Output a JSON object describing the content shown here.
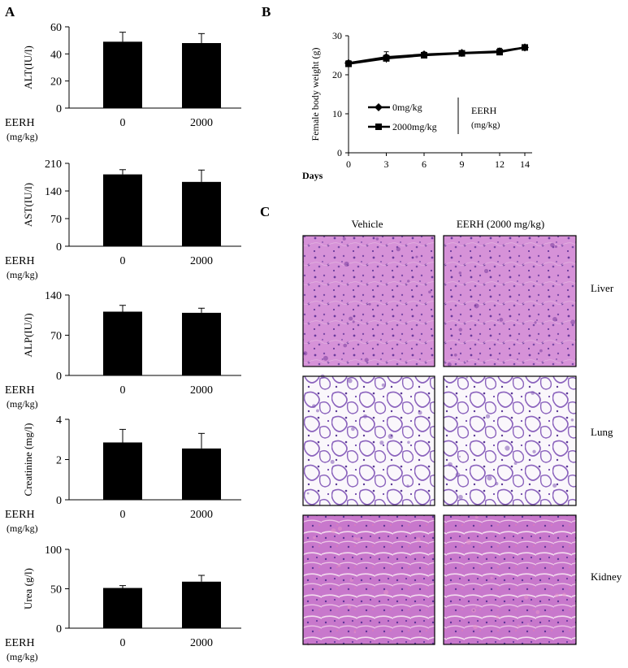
{
  "panel_labels": {
    "a": "A",
    "b": "B",
    "c": "C"
  },
  "x_group": {
    "line1": "EERH",
    "line2": "(mg/kg)"
  },
  "chart_data": [
    {
      "type": "bar",
      "categories": [
        "0",
        "2000"
      ],
      "values": [
        49,
        48
      ],
      "errors": [
        7,
        7
      ],
      "ylabel": "ALT(IU/l)",
      "ylim": [
        0,
        60
      ],
      "yticks": [
        "0",
        "20",
        "40",
        "60"
      ]
    },
    {
      "type": "bar",
      "categories": [
        "0",
        "2000"
      ],
      "values": [
        182,
        163
      ],
      "errors": [
        12,
        30
      ],
      "ylabel": "AST(IU/l)",
      "ylim": [
        0,
        210
      ],
      "yticks": [
        "0",
        "70",
        "140",
        "210"
      ]
    },
    {
      "type": "bar",
      "categories": [
        "0",
        "2000"
      ],
      "values": [
        111,
        109
      ],
      "errors": [
        11,
        8
      ],
      "ylabel": "ALP(IU/l)",
      "ylim": [
        0,
        140
      ],
      "yticks": [
        "0",
        "70",
        "140"
      ]
    },
    {
      "type": "bar",
      "categories": [
        "0",
        "2000"
      ],
      "values": [
        2.85,
        2.55
      ],
      "errors": [
        0.65,
        0.75
      ],
      "ylabel": "Creatinine (mg/l)",
      "ylim": [
        0,
        4
      ],
      "yticks": [
        "0",
        "2",
        "4"
      ]
    },
    {
      "type": "bar",
      "categories": [
        "0",
        "2000"
      ],
      "values": [
        51,
        59
      ],
      "errors": [
        3,
        8
      ],
      "ylabel": "Urea (g/l)",
      "ylim": [
        0,
        100
      ],
      "yticks": [
        "0",
        "50",
        "100"
      ]
    },
    {
      "type": "line",
      "x": [
        0,
        3,
        6,
        9,
        12,
        14
      ],
      "xticks": [
        "0",
        "3",
        "6",
        "9",
        "12",
        "14"
      ],
      "series": [
        {
          "name": "0mg/kg",
          "marker": "diamond",
          "values": [
            23,
            24.5,
            25.2,
            25.6,
            26,
            27
          ],
          "errors": [
            0.6,
            1.4,
            0.6,
            0.5,
            0.8,
            0.6
          ]
        },
        {
          "name": "2000mg/kg",
          "marker": "square",
          "values": [
            22.8,
            24.2,
            25,
            25.5,
            25.8,
            27
          ],
          "errors": [
            0.6,
            0.9,
            0.6,
            0.5,
            0.6,
            0.6
          ]
        }
      ],
      "xlabel": "Days",
      "ylabel": "Female body weight (g)",
      "ylim": [
        0,
        30
      ],
      "yticks": [
        "0",
        "10",
        "20",
        "30"
      ],
      "legend_title": {
        "line1": "EERH",
        "line2": "(mg/kg)"
      }
    }
  ],
  "histology": {
    "columns": [
      "Vehicle",
      "EERH (2000 mg/kg)"
    ],
    "rows": [
      {
        "label": "Liver",
        "tissue": "liver",
        "base": "#d28fd6",
        "accent": "#7a3d9e"
      },
      {
        "label": "Lung",
        "tissue": "lung",
        "base": "#f6f2f8",
        "accent": "#7f57b5"
      },
      {
        "label": "Kidney",
        "tissue": "kidney",
        "base": "#c774cb",
        "accent": "#e596c8"
      }
    ]
  }
}
